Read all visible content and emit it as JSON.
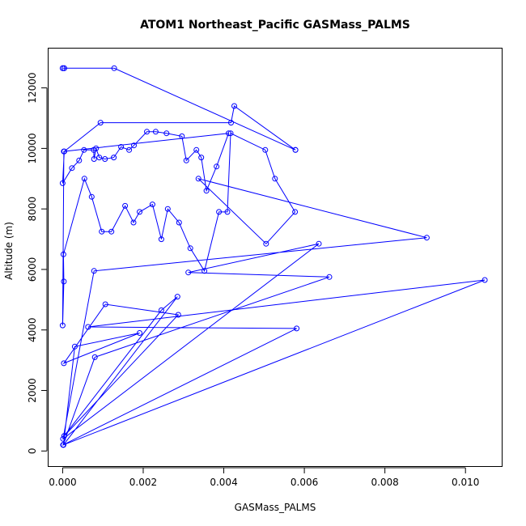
{
  "chart_data": {
    "type": "line",
    "title": "ATOM1 Northeast_Pacific GASMass_PALMS",
    "xlabel": "GASMass_PALMS",
    "ylabel": "Altitude (m)",
    "xlim": [
      -0.00035,
      0.0109
    ],
    "ylim": [
      -500,
      13300
    ],
    "xticks": [
      "0.000",
      "0.002",
      "0.004",
      "0.006",
      "0.008",
      "0.010"
    ],
    "xtick_values": [
      0,
      0.002,
      0.004,
      0.006,
      0.008,
      0.01
    ],
    "yticks": [
      "0",
      "2000",
      "4000",
      "6000",
      "8000",
      "10000",
      "12000"
    ],
    "ytick_values": [
      0,
      2000,
      4000,
      6000,
      8000,
      10000,
      12000
    ],
    "grid": false,
    "series": [
      {
        "color": "#0000ff",
        "marker": "open-circle",
        "x": [
          0.0,
          0.0,
          4e-05,
          4e-05,
          0.00128,
          0.00578,
          0.00578,
          0.00426,
          0.00418,
          0.00094,
          4e-05,
          0.0,
          0.00023,
          0.00041,
          0.00053,
          0.00077,
          0.00078,
          0.00083,
          0.00091,
          0.00105,
          0.00127,
          0.00145,
          0.00165,
          0.00177,
          0.00209,
          0.00231,
          0.00258,
          0.00296,
          0.00307,
          0.00332,
          0.00344,
          0.00357,
          0.00382,
          0.00412,
          3e-05,
          0.0,
          3e-05,
          2e-05,
          0.00054,
          0.00072,
          0.00097,
          0.00121,
          0.00155,
          0.00176,
          0.00191,
          0.00223,
          0.00245,
          0.00261,
          0.00289,
          0.00317,
          0.00352,
          0.00388,
          0.00409,
          0.00417,
          0.00503,
          0.00527,
          0.00577,
          0.00505,
          0.00337,
          0.00904,
          0.00078,
          1e-05,
          0.00636,
          0.00312,
          0.00662,
          0.0008,
          1e-05,
          0.00581,
          0.00063,
          0.01048,
          2e-05,
          0.00285,
          0.00245,
          4e-05,
          0.00287,
          0.00106,
          3e-05,
          0.00191,
          0.0003,
          2e-05
        ],
        "y": [
          12650,
          12650,
          12650,
          12650,
          12650,
          9950,
          9950,
          11400,
          10850,
          10850,
          9900,
          8850,
          9350,
          9600,
          9950,
          9950,
          9650,
          10000,
          9700,
          9650,
          9700,
          10050,
          9950,
          10100,
          10550,
          10550,
          10500,
          10400,
          9600,
          9950,
          9700,
          8600,
          9400,
          10500,
          9900,
          4150,
          5600,
          6500,
          9000,
          8400,
          7250,
          7250,
          8100,
          7550,
          7900,
          8150,
          7000,
          8000,
          7550,
          6700,
          5950,
          7900,
          7900,
          10500,
          9950,
          9000,
          7900,
          6850,
          9000,
          7050,
          5950,
          400,
          6850,
          5900,
          5750,
          3100,
          200,
          4050,
          4100,
          5650,
          200,
          5100,
          4650,
          500,
          4500,
          4850,
          2900,
          3900,
          3450,
          200
        ]
      }
    ]
  }
}
